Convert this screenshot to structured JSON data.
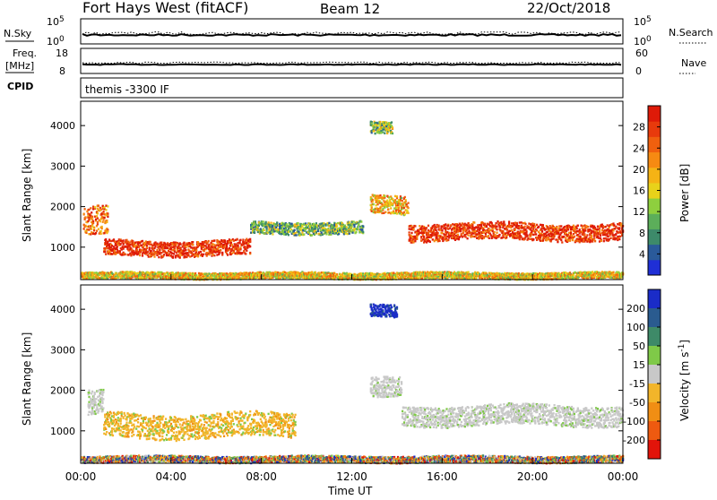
{
  "header": {
    "station": "Fort Hays West (fitACF)",
    "beam": "Beam 12",
    "date": "22/Oct/2018"
  },
  "colors": {
    "background": "#ffffff",
    "ink": "#000000"
  },
  "top_panels": {
    "nsky": {
      "label": "N.Sky",
      "ticks": [
        "10^5",
        "10^0"
      ],
      "right_label": "N.Search",
      "right_ticks": [
        "10^5",
        "10^0"
      ]
    },
    "freq": {
      "label_line1": "Freq.",
      "label_line2": "[MHz]",
      "ticks": [
        "18",
        "8"
      ],
      "right_label": "Nave",
      "right_ticks": [
        "60",
        "0"
      ]
    },
    "cpid": {
      "label": "CPID",
      "text": "themis -3300 IF"
    }
  },
  "time_axis": {
    "xlabel": "Time UT",
    "ticks": [
      "00:00",
      "04:00",
      "08:00",
      "12:00",
      "16:00",
      "20:00",
      "00:00"
    ]
  },
  "chart_data": [
    {
      "type": "heatmap",
      "name": "power",
      "xlabel": "",
      "ylabel": "Slant Range [km]",
      "xlim": [
        0,
        24
      ],
      "ylim": [
        200,
        4600
      ],
      "yticks": [
        "1000",
        "2000",
        "3000",
        "4000"
      ],
      "colorbar": {
        "label": "Power [dB]",
        "ticks": [
          "4",
          "8",
          "12",
          "16",
          "20",
          "24",
          "28"
        ],
        "colors": [
          "#1f2fd6",
          "#2a5a9a",
          "#3d8a6a",
          "#5cae5a",
          "#8ecf3e",
          "#e8d21a",
          "#f5b315",
          "#f68a12",
          "#f0600e",
          "#e83a0c",
          "#de1a08"
        ]
      },
      "bands": [
        {
          "time": [
            0.1,
            1.2
          ],
          "center": 1650,
          "width": 700,
          "level": 0.75
        },
        {
          "time": [
            1.0,
            7.5
          ],
          "center": 1000,
          "width": 380,
          "level": 0.92
        },
        {
          "time": [
            7.5,
            12.5
          ],
          "center": 1500,
          "width": 300,
          "level": 0.35
        },
        {
          "time": [
            12.8,
            14.5
          ],
          "center": 2050,
          "width": 450,
          "level": 0.6
        },
        {
          "time": [
            14.5,
            24.0
          ],
          "center": 1400,
          "width": 420,
          "level": 0.9
        },
        {
          "time": [
            12.8,
            13.8
          ],
          "center": 4000,
          "width": 300,
          "level": 0.4
        },
        {
          "time": [
            0.0,
            24.0
          ],
          "center": 320,
          "width": 160,
          "level": 0.55
        }
      ]
    },
    {
      "type": "heatmap",
      "name": "velocity",
      "xlabel": "Time UT",
      "ylabel": "Slant Range [km]",
      "xlim": [
        0,
        24
      ],
      "ylim": [
        200,
        4600
      ],
      "yticks": [
        "1000",
        "2000",
        "3000",
        "4000"
      ],
      "colorbar": {
        "label": "Velocity [m s^-1]",
        "ticks": [
          "200",
          "100",
          "50",
          "15",
          "-15",
          "-50",
          "-100",
          "-200"
        ],
        "colors": [
          "#1a2cc8",
          "#2a5b8f",
          "#3e8a68",
          "#7fc948",
          "#c8c8c8",
          "#f2b52a",
          "#f08e14",
          "#ee5a10",
          "#e2140a"
        ]
      },
      "bands": [
        {
          "time": [
            0.3,
            1.0
          ],
          "center": 1700,
          "width": 600,
          "v": "gray"
        },
        {
          "time": [
            1.0,
            9.5
          ],
          "center": 1150,
          "width": 600,
          "v": "orange"
        },
        {
          "time": [
            12.8,
            14.2
          ],
          "center": 2050,
          "width": 500,
          "v": "gray"
        },
        {
          "time": [
            14.2,
            24.0
          ],
          "center": 1400,
          "width": 500,
          "v": "gray"
        },
        {
          "time": [
            12.8,
            14.0
          ],
          "center": 4000,
          "width": 300,
          "v": "blue"
        },
        {
          "time": [
            0.0,
            24.0
          ],
          "center": 320,
          "width": 160,
          "v": "mixed"
        }
      ]
    }
  ]
}
